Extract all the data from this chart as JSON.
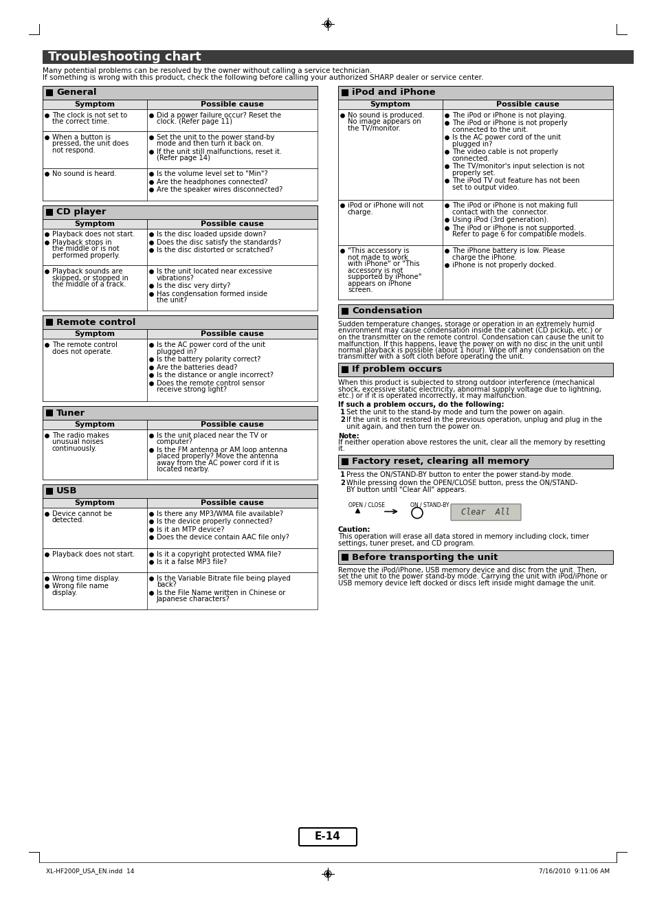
{
  "page_bg": "#ffffff",
  "title": "Troubleshooting chart",
  "title_bg": "#4a4a4a",
  "title_color": "#ffffff",
  "intro_line1": "Many potential problems can be resolved by the owner without calling a service technician.",
  "intro_line2": "If something is wrong with this product, check the following before calling your authorized SHARP dealer or service center.",
  "section_bg": "#d0d0d0",
  "section_text_color": "#000000",
  "table_header_bg": "#e0e0e0",
  "table_border": "#000000",
  "font_size_title": 13,
  "font_size_section": 9.5,
  "font_size_body": 7.2,
  "font_size_small": 6.5,
  "page_number": "E-14",
  "footer_left": "XL-HF200P_USA_EN.indd  14",
  "footer_right": "7/16/2010  9:11:06 AM",
  "sections_left": [
    {
      "title": "General",
      "rows": [
        {
          "symptom": [
            "The clock is not set to\nthe correct time."
          ],
          "cause": [
            "Did a power failure occur? Reset the\nclock. (Refer page 11)"
          ]
        },
        {
          "symptom": [
            "When a button is\npressed, the unit does\nnot respond."
          ],
          "cause": [
            "Set the unit to the power stand-by\nmode and then turn it back on.",
            "If the unit still malfunctions, reset it.\n(Refer page 14)"
          ]
        },
        {
          "symptom": [
            "No sound is heard."
          ],
          "cause": [
            "Is the volume level set to \"Min\"?",
            "Are the headphones connected?",
            "Are the speaker wires disconnected?"
          ]
        }
      ]
    },
    {
      "title": "CD player",
      "rows": [
        {
          "symptom": [
            "Playback does not start.",
            "Playback stops in\nthe middle or is not\nperformed properly."
          ],
          "cause": [
            "Is the disc loaded upside down?",
            "Does the disc satisfy the standards?",
            "Is the disc distorted or scratched?"
          ]
        },
        {
          "symptom": [
            "Playback sounds are\nskipped, or stopped in\nthe middle of a track."
          ],
          "cause": [
            "Is the unit located near excessive\nvibrations?",
            "Is the disc very dirty?",
            "Has condensation formed inside\nthe unit?"
          ]
        }
      ]
    },
    {
      "title": "Remote control",
      "rows": [
        {
          "symptom": [
            "The remote control\ndoes not operate."
          ],
          "cause": [
            "Is the AC power cord of the unit\nplugged in?",
            "Is the battery polarity correct?",
            "Are the batteries dead?",
            "Is the distance or angle incorrect?",
            "Does the remote control sensor\nreceive strong light?"
          ]
        }
      ]
    },
    {
      "title": "Tuner",
      "rows": [
        {
          "symptom": [
            "The radio makes\nunusual noises\ncontinuously."
          ],
          "cause": [
            "Is the unit placed near the TV or\ncomputer?",
            "Is the FM antenna or AM loop antenna\nplaced properly? Move the antenna\naway from the AC power cord if it is\nlocated nearby."
          ]
        }
      ]
    },
    {
      "title": "USB",
      "rows": [
        {
          "symptom": [
            "Device cannot be\ndetected."
          ],
          "cause": [
            "Is there any MP3/WMA file available?",
            "Is the device properly connected?",
            "Is it an MTP device?",
            "Does the device contain AAC file only?"
          ]
        },
        {
          "symptom": [
            "Playback does not start."
          ],
          "cause": [
            "Is it a copyright protected WMA file?",
            "Is it a false MP3 file?"
          ]
        },
        {
          "symptom": [
            "Wrong time display.",
            "Wrong file name\ndisplay."
          ],
          "cause": [
            "Is the Variable Bitrate file being played\nback?",
            "Is the File Name written in Chinese or\nJapanese characters?"
          ]
        }
      ]
    }
  ],
  "ipod_section": {
    "title": "iPod and iPhone",
    "rows": [
      {
        "symptom": [
          "No sound is produced.\nNo image appears on\nthe TV/monitor."
        ],
        "cause": [
          "The iPod or iPhone is not playing.",
          "The iPod or iPhone is not properly\nconnected to the unit.",
          "Is the AC power cord of the unit\nplugged in?",
          "The video cable is not properly\nconnected.",
          "The TV/monitor's input selection is not\nproperly set.",
          "The iPod TV out feature has not been\nset to output video."
        ]
      },
      {
        "symptom": [
          "iPod or iPhone will not\ncharge."
        ],
        "cause": [
          "The iPod or iPhone is not making full\ncontact with the  connector.",
          "Using iPod (3rd generation).",
          "The iPod or iPhone is not supported.\nRefer to page 6 for compatible models."
        ]
      },
      {
        "symptom": [
          "\"This accessory is\nnot made to work\nwith iPhone\" or \"This\naccessory is not\nsupported by iPhone\"\nappears on iPhone\nscreen."
        ],
        "cause": [
          "The iPhone battery is low. Please\ncharge the iPhone.",
          "iPhone is not properly docked."
        ]
      }
    ]
  },
  "condensation_title": "Condensation",
  "condensation_text": "Sudden temperature changes, storage or operation in an extremely humid\nenvironment may cause condensation inside the cabinet (CD pickup, etc.) or\non the transmitter on the remote control. Condensation can cause the unit to\nmalfunction. If this happens, leave the power on with no disc in the unit until\nnormal playback is possible (about 1 hour). Wipe off any condensation on the\ntransmitter with a soft cloth before operating the unit.",
  "if_problem_title": "If problem occurs",
  "if_problem_text": "When this product is subjected to strong outdoor interference (mechanical\nshock, excessive static electricity, abnormal supply voltage due to lightning,\netc.) or if it is operated incorrectly, it may malfunction.",
  "if_problem_steps_intro": "If such a problem occurs, do the following:",
  "if_problem_steps": [
    "Set the unit to the stand-by mode and turn the power on again.",
    "If the unit is not restored in the previous operation, unplug and plug in the\nunit again, and then turn the power on."
  ],
  "if_problem_note_title": "Note:",
  "if_problem_note_body": "If neither operation above restores the unit, clear all the memory by resetting\nit.",
  "factory_reset_title": "Factory reset, clearing all memory",
  "factory_reset_steps": [
    "Press the ON/STAND-BY button to enter the power stand-by mode.",
    "While pressing down the OPEN/CLOSE button, press the ON/STAND-\nBY button until \"Clear All\" appears."
  ],
  "factory_reset_caution_title": "Caution:",
  "factory_reset_caution_body": "This operation will erase all data stored in memory including clock, timer\nsettings, tuner preset, and CD program.",
  "before_transport_title": "Before transporting the unit",
  "before_transport_text": "Remove the iPod/iPhone, USB memory device and disc from the unit. Then,\nset the unit to the power stand-by mode. Carrying the unit with iPod/iPhone or\nUSB memory device left docked or discs left inside might damage the unit."
}
